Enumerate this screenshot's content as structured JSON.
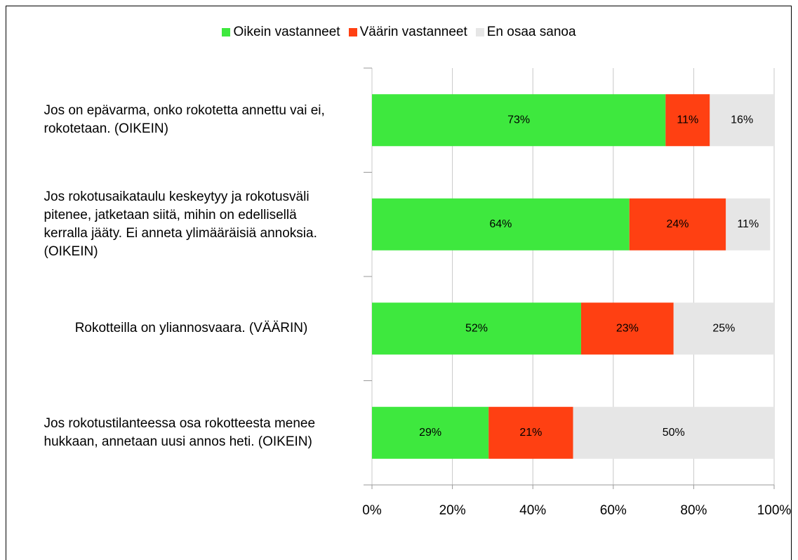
{
  "chart_data": {
    "type": "stacked_barh",
    "categories": [
      "Jos on epävarma, onko rokotetta annettu vai ei, rokotetaan. (OIKEIN)",
      "Jos rokotusaikataulu keskeytyy ja rokotusväli pitenee, jatketaan siitä, mihin on edellisellä kerralla jääty. Ei anneta ylimääräisiä annoksia. (OIKEIN)",
      "Rokotteilla on yliannosvaara. (VÄÄRIN)",
      "Jos rokotustilanteessa osa rokotteesta menee hukkaan, annetaan uusi annos heti. (OIKEIN)"
    ],
    "series": [
      {
        "name": "Oikein vastanneet",
        "color": "#3ee83e",
        "values": [
          73,
          64,
          52,
          29
        ],
        "value_labels": [
          "73%",
          "64%",
          "52%",
          "29%"
        ]
      },
      {
        "name": "Väärin vastanneet",
        "color": "#ff4012",
        "values": [
          11,
          24,
          23,
          21
        ],
        "value_labels": [
          "11%",
          "24%",
          "23%",
          "21%"
        ]
      },
      {
        "name": "En osaa sanoa",
        "color": "#e6e6e6",
        "values": [
          16,
          11,
          25,
          50
        ],
        "value_labels": [
          "16%",
          "11%",
          "25%",
          "50%"
        ]
      }
    ],
    "xlim": [
      0,
      100
    ],
    "xticks": [
      {
        "value": 0,
        "label": "0%"
      },
      {
        "value": 20,
        "label": "20%"
      },
      {
        "value": 40,
        "label": "40%"
      },
      {
        "value": 60,
        "label": "60%"
      },
      {
        "value": 80,
        "label": "80%"
      },
      {
        "value": 100,
        "label": "100%"
      }
    ],
    "grid": true,
    "legend": "top"
  }
}
